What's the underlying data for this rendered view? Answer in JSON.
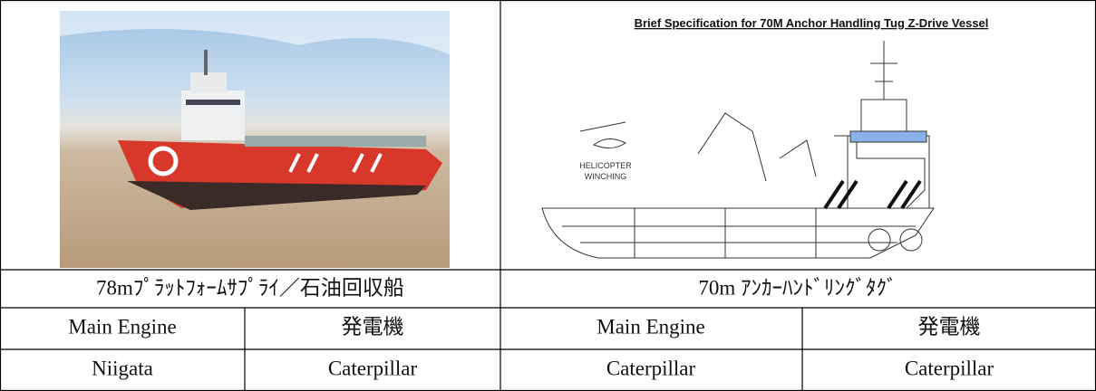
{
  "drawing": {
    "title": "Brief Specification for 70M Anchor Handling Tug Z-Drive Vessel",
    "labels": [
      "HELICOPTER",
      "WINCHING"
    ]
  },
  "table": {
    "captions": [
      "78mﾌﾟﾗｯﾄﾌｫｰﾑｻﾌﾟﾗｲ／石油回収船",
      "70m ｱﾝｶｰﾊﾝﾄﾞﾘﾝｸﾞﾀｸﾞ"
    ],
    "rows": [
      [
        "Main Engine",
        "発電機",
        "Main Engine",
        "発電機"
      ],
      [
        "Niigata",
        "Caterpillar",
        "Caterpillar",
        "Caterpillar"
      ]
    ]
  }
}
